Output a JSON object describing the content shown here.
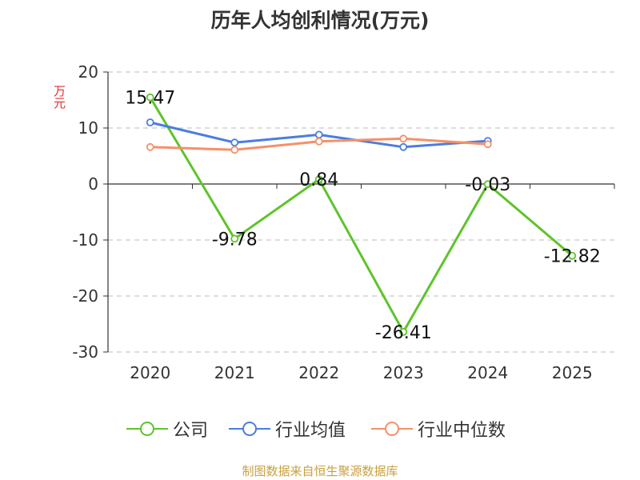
{
  "title": "历年人均创利情况(万元)",
  "y_unit": "万元",
  "source": "制图数据来自恒生聚源数据库",
  "colors": {
    "company": "#5ec42b",
    "industry_avg": "#4b7de0",
    "industry_median": "#f5906a",
    "axis": "#333333",
    "grid": "#c8c8c8",
    "unit": "#e03030",
    "source": "#c8a040"
  },
  "chart_data": {
    "type": "line",
    "title": "历年人均创利情况(万元)",
    "ylabel": "万元",
    "xlabel": "",
    "categories": [
      "2020",
      "2021",
      "2022",
      "2023",
      "2024",
      "2025"
    ],
    "y_ticks": [
      20,
      10,
      0,
      -10,
      -20,
      -30
    ],
    "ylim": [
      -30,
      20
    ],
    "grid": true,
    "legend_position": "bottom",
    "series": [
      {
        "name": "公司",
        "color": "#5ec42b",
        "values": [
          15.47,
          -9.78,
          0.84,
          -26.41,
          -0.03,
          -12.82
        ],
        "labels": [
          "15.47",
          "-9.78",
          "0.84",
          "-26.41",
          "-0.03",
          "-12.82"
        ],
        "show_labels": true
      },
      {
        "name": "行业均值",
        "color": "#4b7de0",
        "values": [
          11.0,
          7.4,
          8.8,
          6.6,
          7.7,
          null
        ],
        "show_labels": false
      },
      {
        "name": "行业中位数",
        "color": "#f5906a",
        "values": [
          6.6,
          6.1,
          7.6,
          8.1,
          7.1,
          null
        ],
        "show_labels": false
      }
    ]
  }
}
